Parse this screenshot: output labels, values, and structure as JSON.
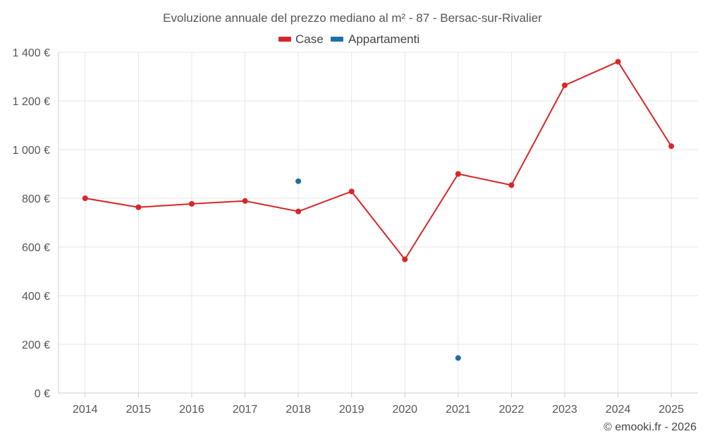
{
  "chart_data": {
    "type": "line",
    "title": "Evoluzione annuale del prezzo mediano al m² - 87 - Bersac-sur-Rivalier",
    "categories": [
      "2014",
      "2015",
      "2016",
      "2017",
      "2018",
      "2019",
      "2020",
      "2021",
      "2022",
      "2023",
      "2024",
      "2025"
    ],
    "ylim": [
      0,
      1400
    ],
    "y_ticks": [
      0,
      200,
      400,
      600,
      800,
      1000,
      1200,
      1400
    ],
    "y_tick_labels": [
      "0 €",
      "200 €",
      "400 €",
      "600 €",
      "800 €",
      "1 000 €",
      "1 200 €",
      "1 400 €"
    ],
    "grid": true,
    "legend_position": "top-center",
    "series": [
      {
        "name": "Case",
        "color": "#d62728",
        "values": [
          800,
          763,
          777,
          789,
          746,
          828,
          549,
          900,
          854,
          1264,
          1361,
          1014
        ]
      },
      {
        "name": "Appartamenti",
        "color": "#1f6fa8",
        "values": [
          null,
          null,
          null,
          null,
          870,
          null,
          null,
          144,
          null,
          null,
          null,
          null
        ]
      }
    ],
    "credit": "© emooki.fr - 2026"
  }
}
